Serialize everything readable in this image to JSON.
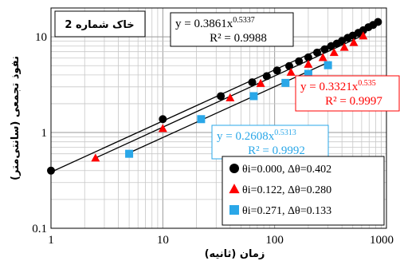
{
  "chart_data": {
    "type": "scatter",
    "x_scale": "log",
    "y_scale": "log",
    "xlim": [
      1,
      1000
    ],
    "ylim": [
      0.1,
      20
    ],
    "x_ticks": [
      "1",
      "10",
      "100",
      "1000"
    ],
    "y_ticks": [
      "0.1",
      "1",
      "10"
    ],
    "xlabel": "زمان (ثانیه)",
    "ylabel": "نفوذ تجمعی (سانتی‌متر)",
    "grid": true,
    "annotation": "خاک شماره 2",
    "legend_position": "bottom-right",
    "series": [
      {
        "name": "θi=0.000, Δθ=0.402",
        "marker": "circle",
        "color": "#000000",
        "x": [
          1,
          10,
          33,
          63,
          85,
          105,
          135,
          165,
          200,
          240,
          280,
          320,
          360,
          400,
          450,
          500,
          560,
          620,
          690,
          760,
          840
        ],
        "y": [
          0.4,
          1.38,
          2.4,
          3.35,
          3.88,
          4.45,
          4.95,
          5.55,
          6.1,
          6.85,
          7.4,
          8.0,
          8.5,
          9.05,
          9.75,
          10.3,
          11.0,
          11.7,
          12.6,
          13.3,
          14.3
        ],
        "fit": {
          "a": 0.3861,
          "b": 0.5337,
          "equation": "y = 0.3861x",
          "exponent": "0.5337",
          "r2": "R² = 0.9988",
          "color": "#000000"
        }
      },
      {
        "name": "θi=0.122, Δθ=0.280",
        "marker": "triangle",
        "color": "#ff0000",
        "x": [
          2.5,
          10,
          40,
          75,
          140,
          200,
          270,
          340,
          420,
          510,
          620
        ],
        "y": [
          0.54,
          1.1,
          2.3,
          3.25,
          4.25,
          5.15,
          6.05,
          6.85,
          7.75,
          8.7,
          10.2
        ],
        "fit": {
          "a": 0.3321,
          "b": 0.535,
          "equation": "y = 0.3321x",
          "exponent": "0.535",
          "r2": "R² = 0.9997",
          "color": "#ff0000"
        }
      },
      {
        "name": "θi=0.271, Δθ=0.133",
        "marker": "square",
        "color": "#2aa7e8",
        "x": [
          5,
          22,
          65,
          125,
          200,
          300
        ],
        "y": [
          0.6,
          1.38,
          2.4,
          3.3,
          4.1,
          5.05
        ],
        "fit": {
          "a": 0.2608,
          "b": 0.5313,
          "equation": "y = 0.2608x",
          "exponent": "0.5313",
          "r2": "R² = 0.9992",
          "color": "#2aa7e8"
        }
      }
    ]
  }
}
